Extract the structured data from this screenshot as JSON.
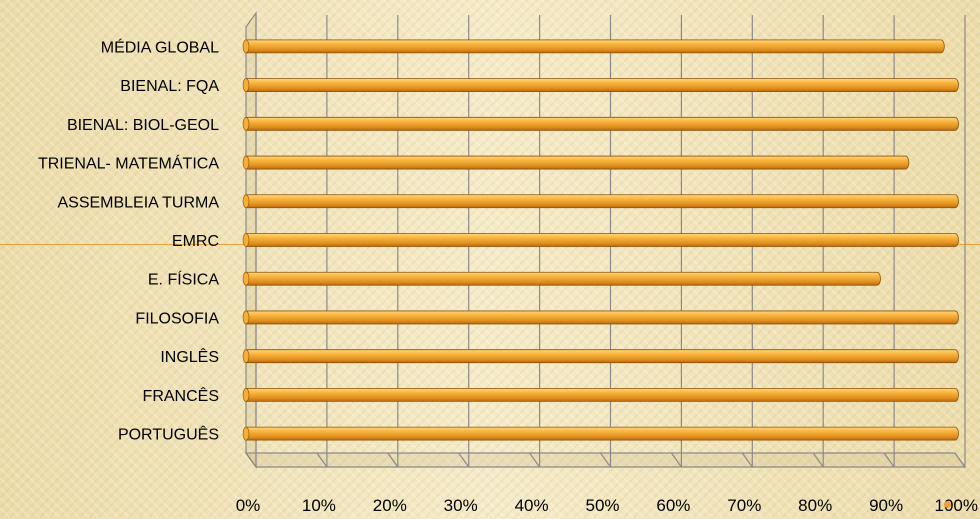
{
  "chart_data": {
    "type": "bar",
    "orientation": "horizontal",
    "categories": [
      "MÉDIA GLOBAL",
      "BIENAL: FQA",
      "BIENAL: BIOL-GEOL",
      "TRIENAL- MATEMÁTICA",
      "ASSEMBLEIA TURMA",
      "EMRC",
      "E. FÍSICA",
      "FILOSOFIA",
      "INGLÊS",
      "FRANCÊS",
      "PORTUGUÊS"
    ],
    "values": [
      98,
      100,
      100,
      93,
      100,
      100,
      89,
      100,
      100,
      100,
      100
    ],
    "xlim": [
      0,
      100
    ],
    "x_ticks": [
      "0%",
      "10%",
      "20%",
      "30%",
      "40%",
      "50%",
      "60%",
      "70%",
      "80%",
      "90%",
      "100%"
    ],
    "grid": true,
    "colors": {
      "bar": "#f0a32e",
      "bar_light": "#ffd67a",
      "bar_dark": "#b86a10",
      "grid": "#8a8a8a",
      "accent": "#e8a33a"
    }
  }
}
